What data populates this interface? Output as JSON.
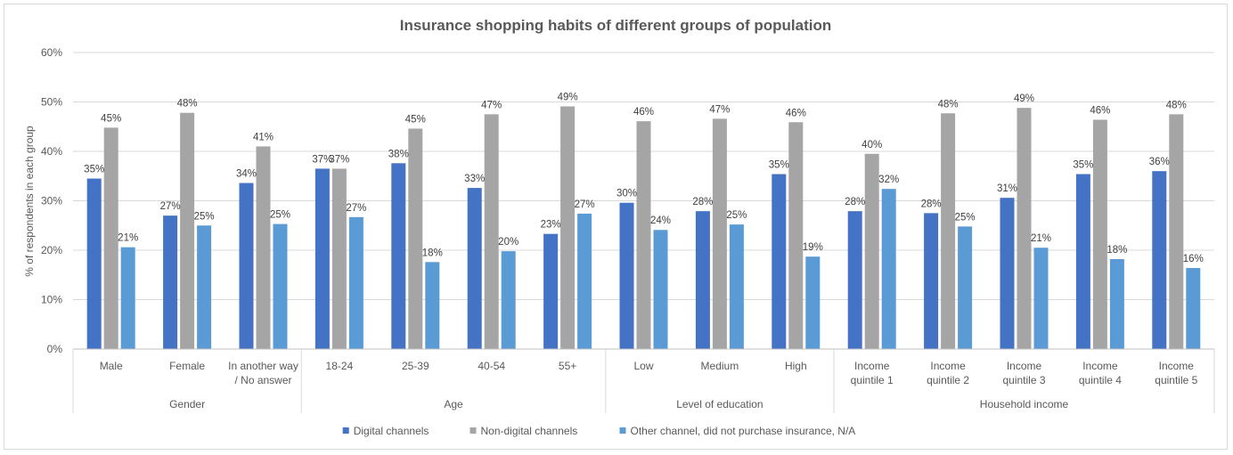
{
  "chart_data": {
    "type": "bar",
    "title": "Insurance shopping habits of different groups of population",
    "ylabel": "% of respondents in each group",
    "ylim": [
      0,
      60
    ],
    "yticks": [
      "0%",
      "10%",
      "20%",
      "30%",
      "40%",
      "50%",
      "60%"
    ],
    "grid": true,
    "legend_position": "bottom",
    "categories": [
      [
        "Male"
      ],
      [
        "Female"
      ],
      [
        "In another way",
        "/ No answer"
      ],
      [
        "18-24"
      ],
      [
        "25-39"
      ],
      [
        "40-54"
      ],
      [
        "55+"
      ],
      [
        "Low"
      ],
      [
        "Medium"
      ],
      [
        "High"
      ],
      [
        "Income",
        "quintile 1"
      ],
      [
        "Income",
        "quintile 2"
      ],
      [
        "Income",
        "quintile 3"
      ],
      [
        "Income",
        "quintile 4"
      ],
      [
        "Income",
        "quintile 5"
      ]
    ],
    "groups": [
      {
        "name": "Gender",
        "count": 3
      },
      {
        "name": "Age",
        "count": 4
      },
      {
        "name": "Level of education",
        "count": 3
      },
      {
        "name": "Household income",
        "count": 5
      }
    ],
    "series": [
      {
        "name": "Digital channels",
        "color": "#4472c4",
        "values": [
          34.5,
          27,
          33.6,
          36.5,
          37.6,
          32.6,
          23.3,
          29.6,
          27.9,
          35.4,
          27.9,
          27.5,
          30.6,
          35.4,
          36
        ],
        "labels": [
          "35%",
          "27%",
          "34%",
          "37%",
          "38%",
          "33%",
          "23%",
          "30%",
          "28%",
          "35%",
          "28%",
          "28%",
          "31%",
          "35%",
          "36%"
        ]
      },
      {
        "name": "Non-digital channels",
        "color": "#a5a5a5",
        "values": [
          44.8,
          47.8,
          41,
          36.5,
          44.6,
          47.5,
          49.1,
          46.1,
          46.6,
          45.9,
          39.5,
          47.7,
          48.8,
          46.4,
          47.5
        ],
        "labels": [
          "45%",
          "48%",
          "41%",
          "37%",
          "45%",
          "47%",
          "49%",
          "46%",
          "47%",
          "46%",
          "40%",
          "48%",
          "49%",
          "46%",
          "48%"
        ]
      },
      {
        "name": "Other channel, did not purchase insurance, N/A",
        "color": "#5b9bd5",
        "values": [
          20.6,
          25,
          25.3,
          26.7,
          17.6,
          19.8,
          27.4,
          24.1,
          25.2,
          18.7,
          32.4,
          24.8,
          20.5,
          18.2,
          16.4
        ],
        "labels": [
          "21%",
          "25%",
          "25%",
          "27%",
          "18%",
          "20%",
          "27%",
          "24%",
          "25%",
          "19%",
          "32%",
          "25%",
          "21%",
          "18%",
          "16%"
        ]
      }
    ]
  }
}
